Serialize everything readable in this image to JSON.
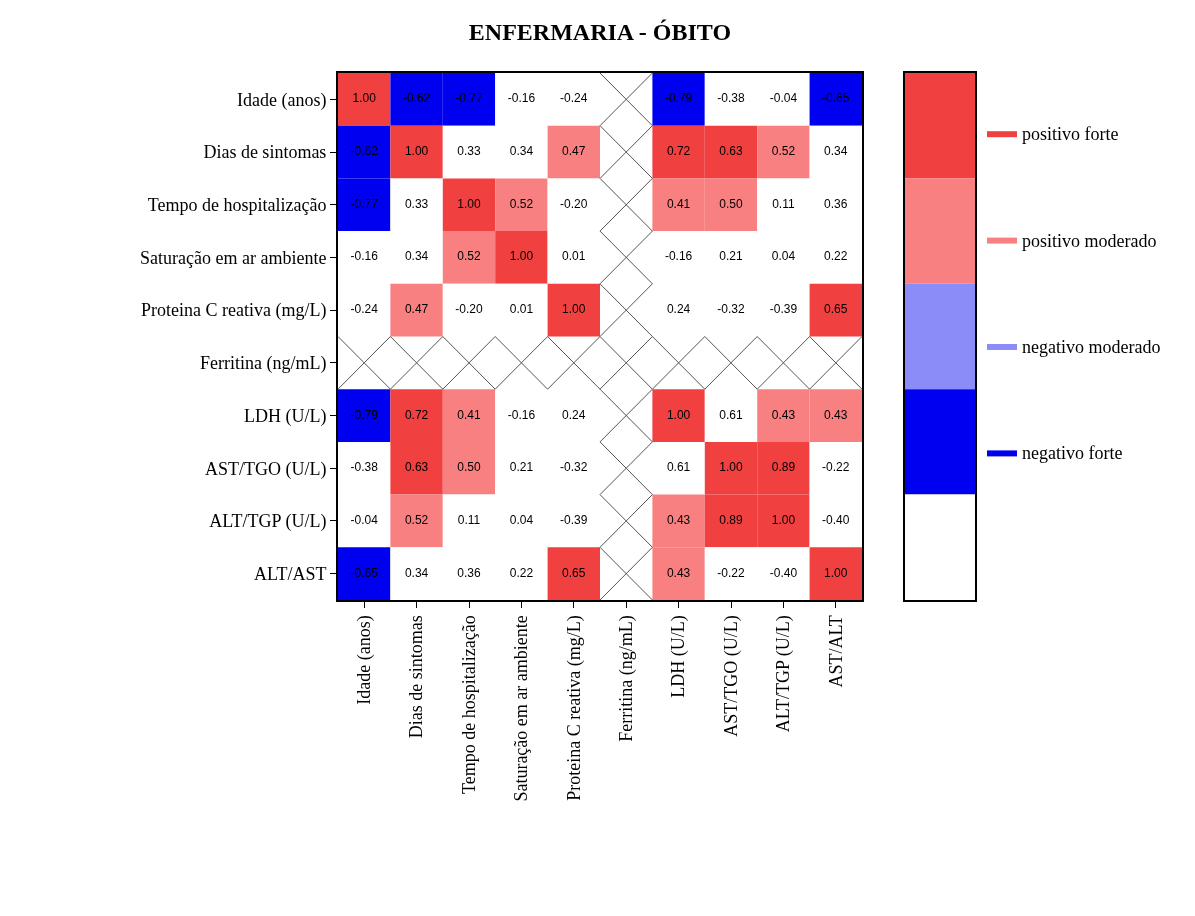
{
  "chart_data": {
    "type": "heatmap",
    "title": "ENFERMARIA - ÓBITO",
    "categories": [
      "Idade (anos)",
      "Dias de sintomas",
      "Tempo de hospitalização",
      "Saturação em ar ambiente",
      "Proteina C reativa (mg/L)",
      "Ferritina (ng/mL)",
      "LDH (U/L)",
      "AST/TGO (U/L)",
      "ALT/TGP (U/L)",
      "AST/ALT"
    ],
    "y_categories": [
      "Idade (anos)",
      "Dias de sintomas",
      "Tempo de hospitalização",
      "Saturação em ar ambiente",
      "Proteina C reativa (mg/L)",
      "Ferritina (ng/mL)",
      "LDH (U/L)",
      "AST/TGO (U/L)",
      "ALT/TGP (U/L)",
      "ALT/AST"
    ],
    "cells": [
      [
        1.0,
        -0.62,
        -0.77,
        -0.16,
        -0.24,
        null,
        -0.79,
        -0.38,
        -0.04,
        -0.65
      ],
      [
        -0.62,
        1.0,
        0.33,
        0.34,
        0.47,
        null,
        0.72,
        0.63,
        0.52,
        0.34
      ],
      [
        -0.77,
        0.33,
        1.0,
        0.52,
        -0.2,
        null,
        0.41,
        0.5,
        0.11,
        0.36
      ],
      [
        -0.16,
        0.34,
        0.52,
        1.0,
        0.01,
        null,
        -0.16,
        0.21,
        0.04,
        0.22
      ],
      [
        -0.24,
        0.47,
        -0.2,
        0.01,
        1.0,
        null,
        0.24,
        -0.32,
        -0.39,
        0.65
      ],
      [
        null,
        null,
        null,
        null,
        null,
        null,
        null,
        null,
        null,
        null
      ],
      [
        -0.79,
        0.72,
        0.41,
        -0.16,
        0.24,
        null,
        1.0,
        0.61,
        0.43,
        0.43
      ],
      [
        -0.38,
        0.63,
        0.5,
        0.21,
        -0.32,
        null,
        0.61,
        1.0,
        0.89,
        -0.22
      ],
      [
        -0.04,
        0.52,
        0.11,
        0.04,
        -0.39,
        null,
        0.43,
        0.89,
        1.0,
        -0.4
      ],
      [
        -0.65,
        0.34,
        0.36,
        0.22,
        0.65,
        null,
        0.43,
        -0.22,
        -0.4,
        1.0
      ]
    ],
    "cell_labels": [
      [
        "1.00",
        "-0.62",
        "-0.77",
        "-0.16",
        "-0.24",
        null,
        "-0.79",
        "-0.38",
        "-0.04",
        "-0.65"
      ],
      [
        "-0.62",
        "1.00",
        "0.33",
        "0.34",
        "0.47",
        null,
        "0.72",
        "0.63",
        "0.52",
        "0.34"
      ],
      [
        "-0.77",
        "0.33",
        "1.00",
        "0.52",
        "-0.20",
        null,
        "0.41",
        "0.50",
        "0.11",
        "0.36"
      ],
      [
        "-0.16",
        "0.34",
        "0.52",
        "1.00",
        "0.01",
        null,
        "-0.16",
        "0.21",
        "0.04",
        "0.22"
      ],
      [
        "-0.24",
        "0.47",
        "-0.20",
        "0.01",
        "1.00",
        null,
        "0.24",
        "-0.32",
        "-0.39",
        "0.65"
      ],
      [
        null,
        null,
        null,
        null,
        null,
        null,
        null,
        null,
        null,
        null
      ],
      [
        "-0.79",
        "0.72",
        "0.41",
        "-0.16",
        "0.24",
        null,
        "1.00",
        "0.61",
        "0.43",
        "0.43"
      ],
      [
        "-0.38",
        "0.63",
        "0.50",
        "0.21",
        "-0.32",
        null,
        "0.61",
        "1.00",
        "0.89",
        "-0.22"
      ],
      [
        "-0.04",
        "0.52",
        "0.11",
        "0.04",
        "-0.39",
        null,
        "0.43",
        "0.89",
        "1.00",
        "-0.40"
      ],
      [
        "-0.65",
        "0.34",
        "0.36",
        "0.22",
        "0.65",
        null,
        "0.43",
        "-0.22",
        "-0.40",
        "1.00"
      ]
    ],
    "colors": [
      [
        "#f04040",
        "#0000f0",
        "#0000f0",
        "#ffffff",
        "#ffffff",
        null,
        "#0000f0",
        "#ffffff",
        "#ffffff",
        "#0000f0"
      ],
      [
        "#0000f0",
        "#f04040",
        "#ffffff",
        "#ffffff",
        "#f98080",
        null,
        "#f04040",
        "#f04040",
        "#f98080",
        "#ffffff"
      ],
      [
        "#0000f0",
        "#ffffff",
        "#f04040",
        "#f98080",
        "#ffffff",
        null,
        "#f98080",
        "#f98080",
        "#ffffff",
        "#ffffff"
      ],
      [
        "#ffffff",
        "#ffffff",
        "#f98080",
        "#f04040",
        "#ffffff",
        null,
        "#ffffff",
        "#ffffff",
        "#ffffff",
        "#ffffff"
      ],
      [
        "#ffffff",
        "#f98080",
        "#ffffff",
        "#ffffff",
        "#f04040",
        null,
        "#ffffff",
        "#ffffff",
        "#ffffff",
        "#f04040"
      ],
      [
        null,
        null,
        null,
        null,
        null,
        null,
        null,
        null,
        null,
        null
      ],
      [
        "#0000f0",
        "#f04040",
        "#f98080",
        "#ffffff",
        "#ffffff",
        null,
        "#f04040",
        "#ffffff",
        "#f98080",
        "#f98080"
      ],
      [
        "#ffffff",
        "#f04040",
        "#f98080",
        "#ffffff",
        "#ffffff",
        null,
        "#ffffff",
        "#f04040",
        "#f04040",
        "#ffffff"
      ],
      [
        "#ffffff",
        "#f98080",
        "#ffffff",
        "#ffffff",
        "#ffffff",
        null,
        "#f98080",
        "#f04040",
        "#f04040",
        "#ffffff"
      ],
      [
        "#0000f0",
        "#ffffff",
        "#ffffff",
        "#ffffff",
        "#f04040",
        null,
        "#f98080",
        "#ffffff",
        "#ffffff",
        "#f04040"
      ]
    ],
    "series": [
      {
        "name": "positivo forte",
        "color": "#f04040",
        "values": [
          null,
          null,
          null,
          null,
          null,
          null,
          null,
          null,
          null,
          null
        ]
      },
      {
        "name": "positivo moderado",
        "color": "#f98080",
        "values": [
          null,
          null,
          null,
          null,
          null,
          null,
          null,
          null,
          null,
          null
        ]
      },
      {
        "name": "negativo moderado",
        "color": "#8c8cf8",
        "values": [
          null,
          null,
          null,
          null,
          null,
          null,
          null,
          null,
          null,
          null
        ]
      },
      {
        "name": "negativo forte",
        "color": "#0000f0",
        "values": [
          null,
          null,
          null,
          null,
          null,
          null,
          null,
          null,
          null,
          null
        ]
      },
      {
        "color": "#ffffff",
        "values": [
          null,
          null,
          null,
          null,
          null,
          null,
          null,
          null,
          null,
          null
        ]
      }
    ],
    "legend": "right",
    "data_labels": true
  }
}
